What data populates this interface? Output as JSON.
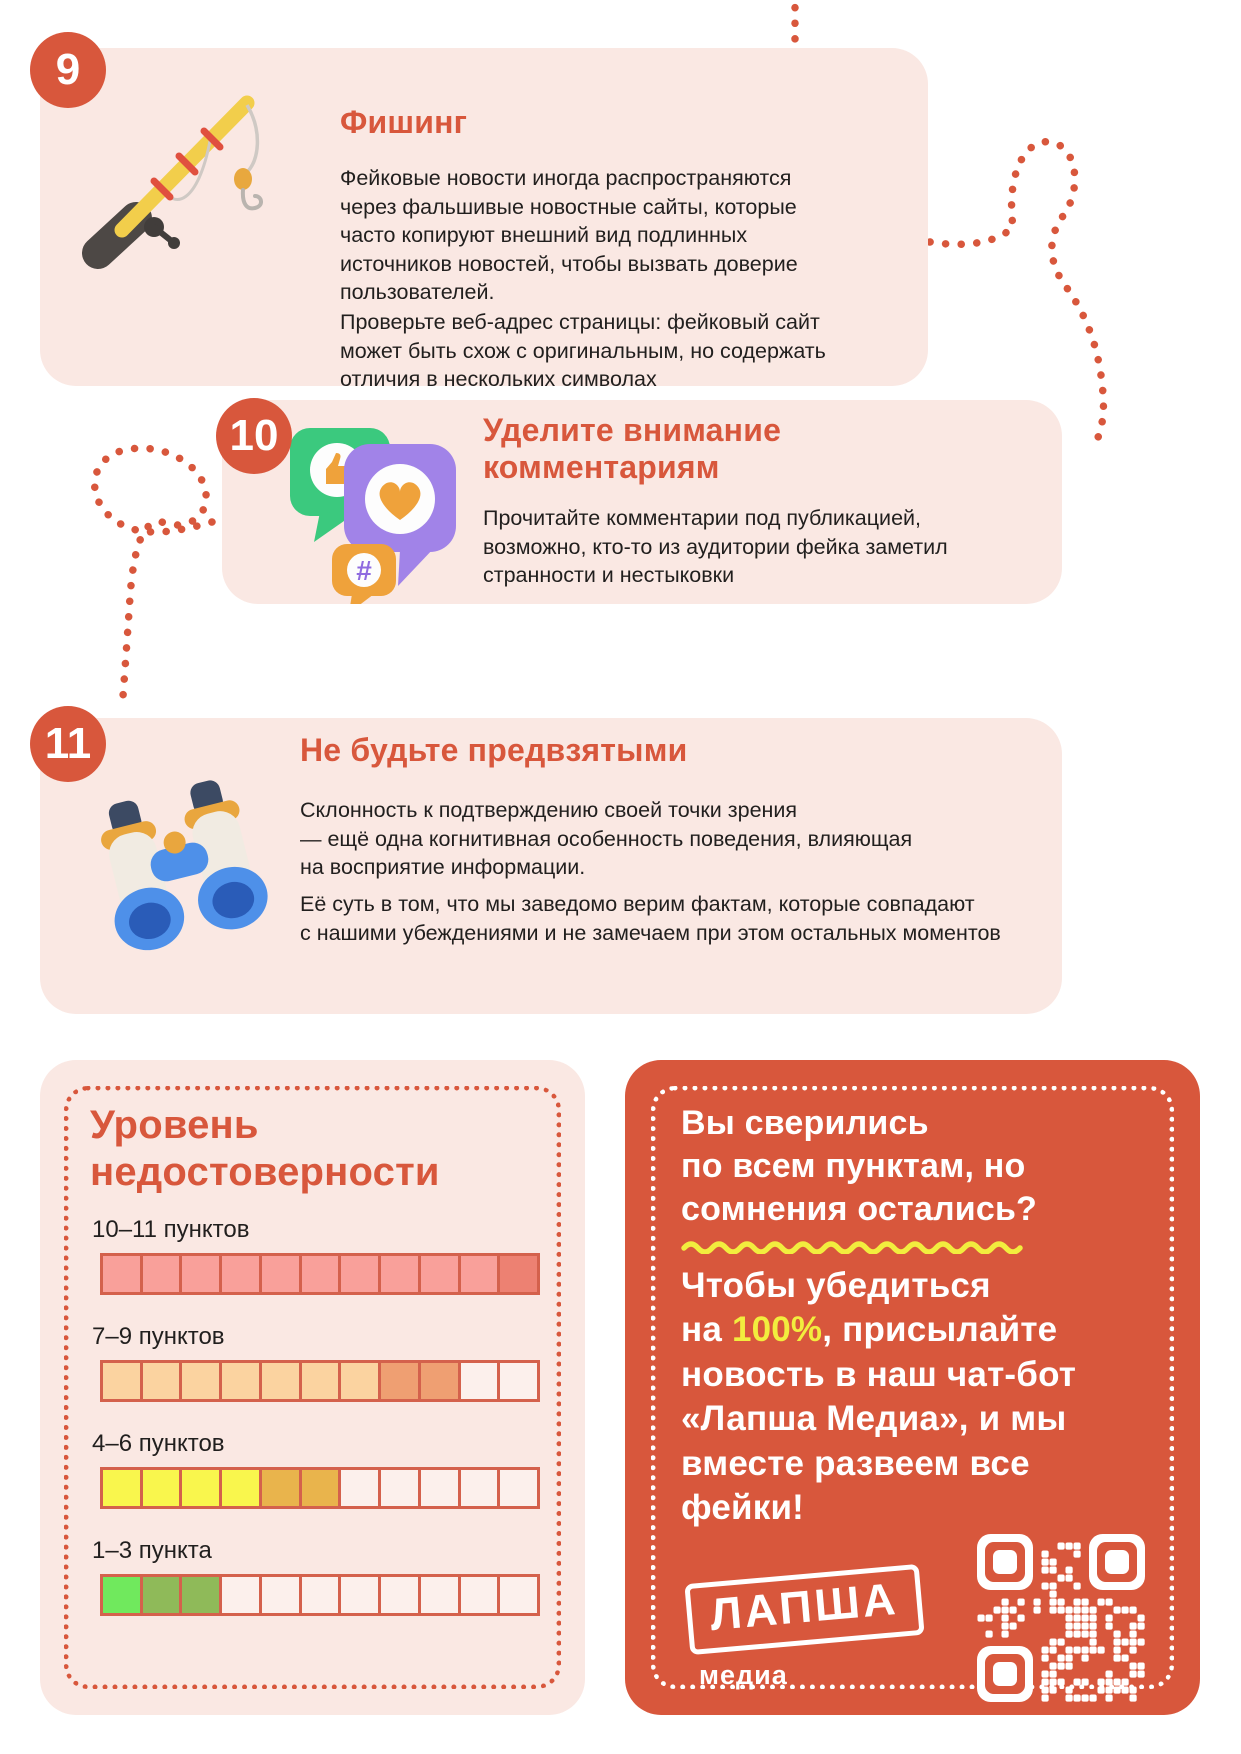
{
  "colors": {
    "accent": "#D8573C",
    "pink_card": "#FAE8E3",
    "red_card": "#D8573C",
    "yellow": "#F2ED3E",
    "body_text": "#211F1E",
    "cell_border": "#D4614C",
    "cell_empty": "#FCF0EC"
  },
  "sections": [
    {
      "number": "9",
      "title": "Фишинг",
      "illustration": "fishing-rod",
      "paragraphs": [
        "Фейковые новости иногда распространяются\nчерез фальшивые новостные сайты, которые\nчасто копируют внешний вид подлинных\nисточников новостей, чтобы вызвать доверие\nпользователей.",
        "Проверьте веб-адрес страницы: фейковый сайт\nможет быть схож с оригинальным, но содержать\nотличия в нескольких символах"
      ]
    },
    {
      "number": "10",
      "title": "Уделите внимание\nкомментариям",
      "illustration": "social-reactions",
      "paragraphs": [
        "Прочитайте комментарии под публикацией,\nвозможно, кто-то из аудитории фейка заметил\nстранности и нестыковки"
      ]
    },
    {
      "number": "11",
      "title": "Не будьте предвзятыми",
      "illustration": "binoculars",
      "paragraphs": [
        "Склонность к подтверждению своей точки зрения\n— ещё одна когнитивная особенность поведения, влияющая\nна восприятие информации.",
        "Её суть в том, что мы заведомо верим фактам, которые совпадают\nс нашими убеждениями и не замечаем при этом остальных моментов"
      ]
    }
  ],
  "reliability_scale": {
    "title": "Уровень\nнедостоверности",
    "segments_total": 11,
    "rows": [
      {
        "label": "10–11 пунктов",
        "cells": [
          "#F9A09A",
          "#F9A09A",
          "#F9A09A",
          "#F9A09A",
          "#F9A09A",
          "#F9A09A",
          "#F9A09A",
          "#F9A09A",
          "#F9A09A",
          "#F9A09A",
          "#ED8172"
        ]
      },
      {
        "label": "7–9 пунктов",
        "cells": [
          "#FBD3A0",
          "#FBD3A0",
          "#FBD3A0",
          "#FBD3A0",
          "#FBD3A0",
          "#FBD3A0",
          "#FBD3A0",
          "#EF9F72",
          "#EF9F72",
          "",
          ""
        ]
      },
      {
        "label": "4–6 пунктов",
        "cells": [
          "#F9F64D",
          "#F9F64D",
          "#F9F64D",
          "#F9F64D",
          "#E9B44C",
          "#E9B44C",
          "",
          "",
          "",
          "",
          ""
        ]
      },
      {
        "label": "1–3 пункта",
        "cells": [
          "#70E95D",
          "#8FBA59",
          "#8FBA59",
          "",
          "",
          "",
          "",
          "",
          "",
          "",
          ""
        ]
      }
    ]
  },
  "cta": {
    "headline": "Вы сверились\nпо всем пунктам, но\nсомнения остались?",
    "body_prefix": "Чтобы убедиться\nна ",
    "body_highlight": "100%",
    "body_suffix": ", присылайте\nновость в наш чат-бот\n«Лапша Медиа», и мы\nвместе развеем все\nфейки!",
    "logo_text": "ЛАПША",
    "logo_subtext": "медиа",
    "qr": "qr-code"
  }
}
